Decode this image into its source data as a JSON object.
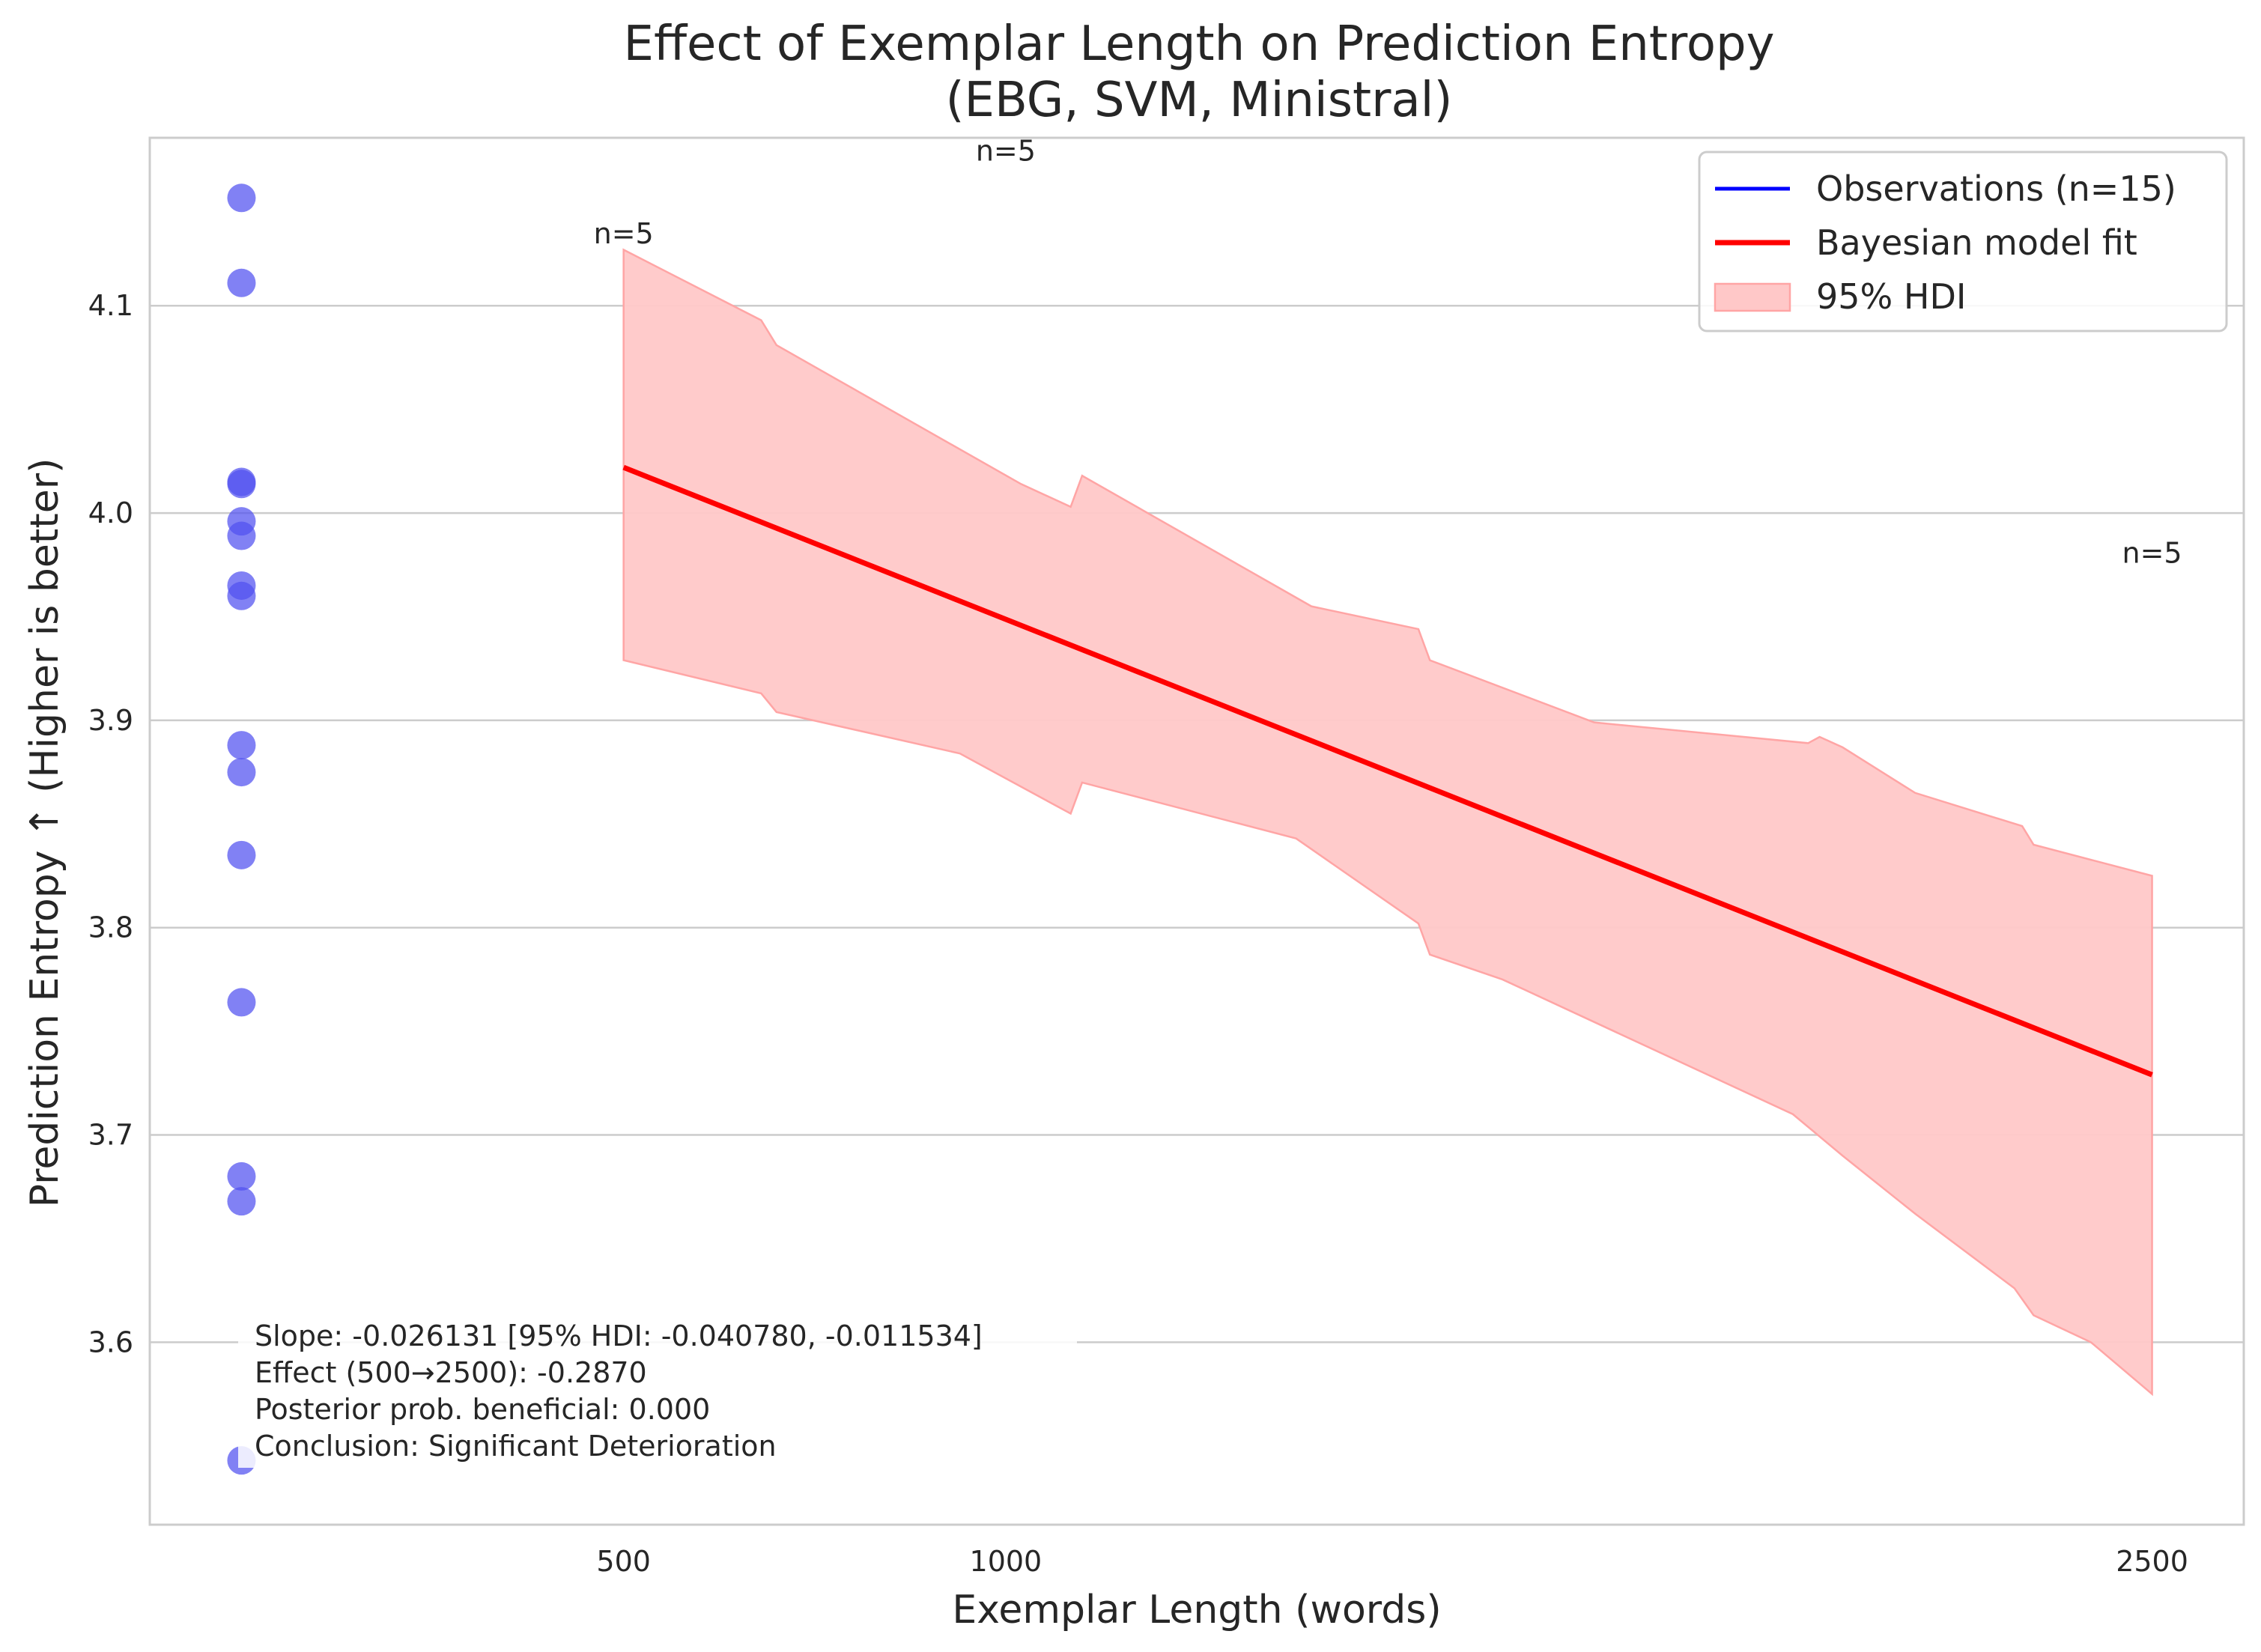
{
  "chart_data": {
    "type": "scatter",
    "title_lines": [
      "Effect of Exemplar Length on Prediction Entropy",
      "(EBG, SVM, Ministral)"
    ],
    "xlabel": "Exemplar Length (words)",
    "ylabel": "Prediction Entropy ↑ (Higher is better)",
    "x_ticks": [
      500,
      1000,
      2500
    ],
    "x_tick_labels": [
      "500",
      "1000",
      "2500"
    ],
    "y_ticks": [
      3.6,
      3.7,
      3.8,
      3.9,
      4.0,
      4.1
    ],
    "y_tick_labels": [
      "3.6",
      "3.7",
      "3.8",
      "3.9",
      "4.0",
      "4.1"
    ],
    "ylim": [
      3.512,
      4.181
    ],
    "xlim": [
      -120,
      2620
    ],
    "grid": "horizontal",
    "legend_position": "top-right",
    "legend": [
      {
        "label": "Observations (n=15)",
        "kind": "line",
        "color": "#0000ff"
      },
      {
        "label": "Bayesian model fit",
        "kind": "line",
        "color": "#ff0000"
      },
      {
        "label": "95% HDI",
        "kind": "patch",
        "color": "#ffc8c8"
      }
    ],
    "observations": {
      "color": "#5050f0",
      "points": [
        {
          "x": 0,
          "y": 4.152
        },
        {
          "x": 0,
          "y": 4.111
        },
        {
          "x": 0,
          "y": 4.015
        },
        {
          "x": 0,
          "y": 4.014
        },
        {
          "x": 0,
          "y": 3.996
        },
        {
          "x": 0,
          "y": 3.989
        },
        {
          "x": 0,
          "y": 3.965
        },
        {
          "x": 0,
          "y": 3.96
        },
        {
          "x": 0,
          "y": 3.888
        },
        {
          "x": 0,
          "y": 3.875
        },
        {
          "x": 0,
          "y": 3.835
        },
        {
          "x": 0,
          "y": 3.764
        },
        {
          "x": 0,
          "y": 3.68
        },
        {
          "x": 0,
          "y": 3.668
        },
        {
          "x": 0,
          "y": 3.543
        }
      ]
    },
    "fit": {
      "color": "#ff0000",
      "x": [
        500,
        2500
      ],
      "y": [
        4.022,
        3.729
      ]
    },
    "hdi": {
      "color": "#ffc8c8",
      "upper": [
        {
          "x": 500,
          "y": 4.127
        },
        {
          "x": 680,
          "y": 4.093
        },
        {
          "x": 700,
          "y": 4.081
        },
        {
          "x": 1020,
          "y": 4.014
        },
        {
          "x": 1085,
          "y": 4.003
        },
        {
          "x": 1100,
          "y": 4.018
        },
        {
          "x": 1400,
          "y": 3.955
        },
        {
          "x": 1540,
          "y": 3.944
        },
        {
          "x": 1555,
          "y": 3.929
        },
        {
          "x": 1770,
          "y": 3.899
        },
        {
          "x": 2050,
          "y": 3.889
        },
        {
          "x": 2065,
          "y": 3.892
        },
        {
          "x": 2095,
          "y": 3.887
        },
        {
          "x": 2190,
          "y": 3.865
        },
        {
          "x": 2330,
          "y": 3.849
        },
        {
          "x": 2345,
          "y": 3.84
        },
        {
          "x": 2500,
          "y": 3.825
        }
      ],
      "lower": [
        {
          "x": 500,
          "y": 3.929
        },
        {
          "x": 680,
          "y": 3.913
        },
        {
          "x": 700,
          "y": 3.904
        },
        {
          "x": 940,
          "y": 3.884
        },
        {
          "x": 1085,
          "y": 3.855
        },
        {
          "x": 1100,
          "y": 3.87
        },
        {
          "x": 1380,
          "y": 3.843
        },
        {
          "x": 1540,
          "y": 3.802
        },
        {
          "x": 1555,
          "y": 3.787
        },
        {
          "x": 1650,
          "y": 3.775
        },
        {
          "x": 2030,
          "y": 3.71
        },
        {
          "x": 2095,
          "y": 3.69
        },
        {
          "x": 2190,
          "y": 3.662
        },
        {
          "x": 2320,
          "y": 3.626
        },
        {
          "x": 2345,
          "y": 3.613
        },
        {
          "x": 2420,
          "y": 3.6
        },
        {
          "x": 2500,
          "y": 3.575
        }
      ]
    },
    "annotations": [
      {
        "text": "n=5",
        "x": 500,
        "y": 4.13
      },
      {
        "text": "n=5",
        "x": 1000,
        "y": 4.17
      },
      {
        "text": "n=5",
        "x": 2500,
        "y": 3.976
      }
    ],
    "stats_box": [
      "Slope: -0.026131 [95% HDI: -0.040780, -0.011534]",
      "Effect (500→2500): -0.2870",
      "Posterior prob. beneficial: 0.000",
      "Conclusion: Significant Deterioration"
    ]
  }
}
